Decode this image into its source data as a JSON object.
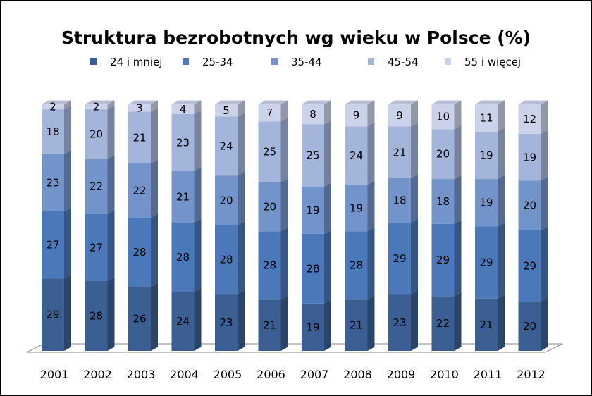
{
  "chart_data": {
    "type": "bar",
    "stacked": true,
    "three_d": true,
    "title": "Struktura bezrobotnych wg wieku w Polsce (%)",
    "legend_position": "top",
    "grid": false,
    "ylim": [
      0,
      100
    ],
    "categories": [
      "2001",
      "2002",
      "2003",
      "2004",
      "2005",
      "2006",
      "2007",
      "2008",
      "2009",
      "2010",
      "2011",
      "2012"
    ],
    "series": [
      {
        "name": "24 i mniej",
        "color": "#3c5f93",
        "values": [
          29,
          28,
          26,
          24,
          23,
          21,
          19,
          21,
          23,
          22,
          21,
          20
        ]
      },
      {
        "name": "25-34",
        "color": "#4a78b8",
        "values": [
          27,
          27,
          28,
          28,
          28,
          28,
          28,
          28,
          29,
          29,
          29,
          29
        ]
      },
      {
        "name": "35-44",
        "color": "#7393cb",
        "values": [
          23,
          22,
          22,
          21,
          20,
          20,
          19,
          19,
          18,
          18,
          19,
          20
        ]
      },
      {
        "name": "45-54",
        "color": "#a4b5dc",
        "values": [
          18,
          20,
          21,
          23,
          24,
          25,
          25,
          24,
          21,
          20,
          19,
          19
        ]
      },
      {
        "name": "55 i więcej",
        "color": "#cbd3ea",
        "values": [
          2,
          2,
          3,
          4,
          5,
          7,
          8,
          9,
          9,
          10,
          11,
          12
        ]
      }
    ]
  }
}
